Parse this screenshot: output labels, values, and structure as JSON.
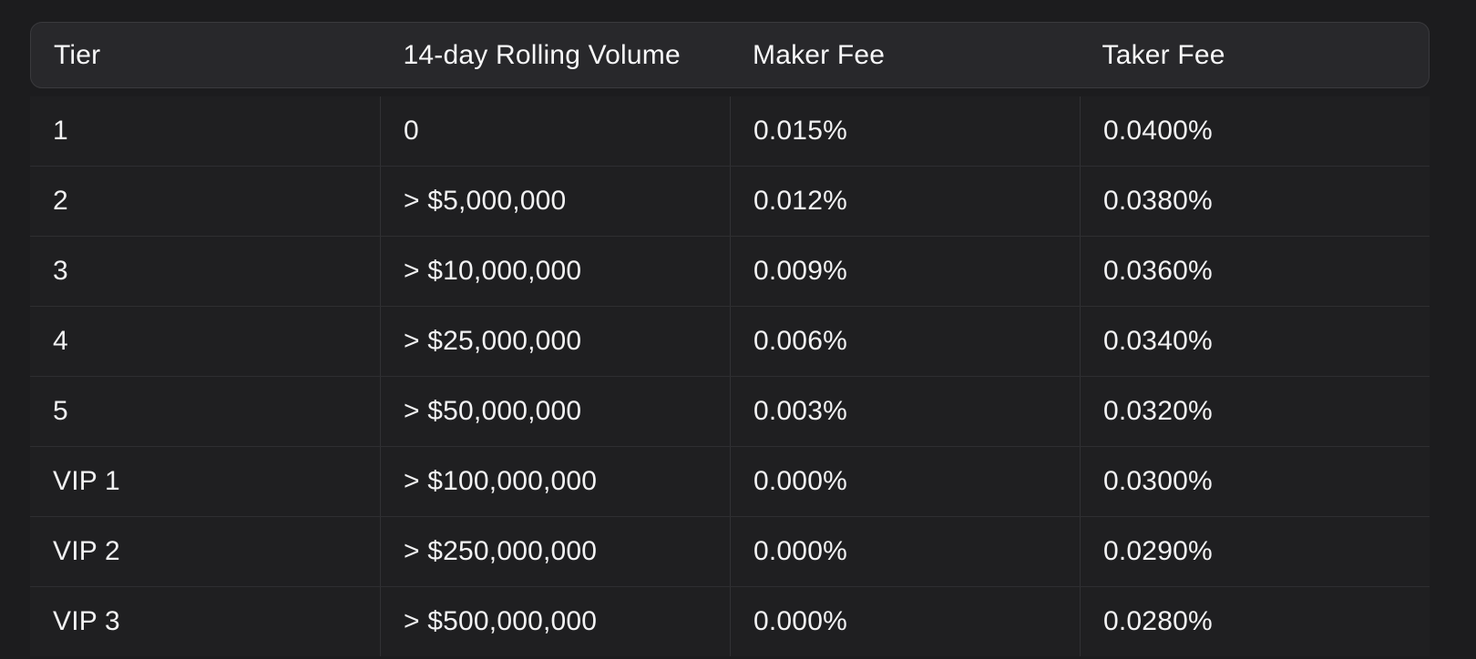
{
  "fee_table": {
    "columns": {
      "tier": "Tier",
      "volume": "14-day Rolling Volume",
      "maker": "Maker Fee",
      "taker": "Taker Fee"
    },
    "rows": [
      {
        "tier": "1",
        "volume": "0",
        "maker": "0.015%",
        "taker": "0.0400%"
      },
      {
        "tier": "2",
        "volume": "> $5,000,000",
        "maker": "0.012%",
        "taker": "0.0380%"
      },
      {
        "tier": "3",
        "volume": "> $10,000,000",
        "maker": "0.009%",
        "taker": "0.0360%"
      },
      {
        "tier": "4",
        "volume": "> $25,000,000",
        "maker": "0.006%",
        "taker": "0.0340%"
      },
      {
        "tier": "5",
        "volume": "> $50,000,000",
        "maker": "0.003%",
        "taker": "0.0320%"
      },
      {
        "tier": "VIP 1",
        "volume": "> $100,000,000",
        "maker": "0.000%",
        "taker": "0.0300%"
      },
      {
        "tier": "VIP 2",
        "volume": "> $250,000,000",
        "maker": "0.000%",
        "taker": "0.0290%"
      },
      {
        "tier": "VIP 3",
        "volume": "> $500,000,000",
        "maker": "0.000%",
        "taker": "0.0280%"
      }
    ],
    "colors": {
      "page_background": "#1c1c1e",
      "header_background": "#28282b",
      "header_border": "#3a3a3d",
      "row_background": "#1f1f21",
      "divider": "#2e2e31",
      "text": "#f2f2f3"
    }
  }
}
